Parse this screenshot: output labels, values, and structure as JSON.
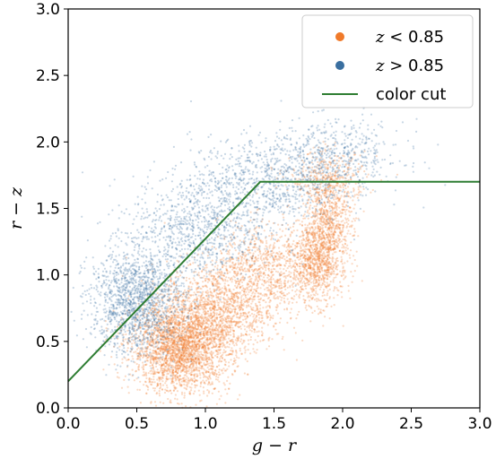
{
  "chart_data": {
    "type": "scatter",
    "xlabel": "g − r",
    "ylabel": "r − z",
    "xlim": [
      0.0,
      3.0
    ],
    "ylim": [
      0.0,
      3.0
    ],
    "x_ticks": [
      "0.0",
      "0.5",
      "1.0",
      "1.5",
      "2.0",
      "2.5",
      "3.0"
    ],
    "y_ticks": [
      "0.0",
      "0.5",
      "1.0",
      "1.5",
      "2.0",
      "2.5",
      "3.0"
    ],
    "grid": false,
    "legend_position": "upper right",
    "series": [
      {
        "name": "z < 0.85",
        "color": "#f07a2a",
        "kind": "points",
        "clusters": [
          {
            "center": [
              0.82,
              0.45
            ],
            "spread": [
              0.18,
              0.17
            ],
            "count": 2600
          },
          {
            "center": [
              1.1,
              0.75
            ],
            "spread": [
              0.2,
              0.18
            ],
            "count": 1300
          },
          {
            "center": [
              1.45,
              1.05
            ],
            "spread": [
              0.18,
              0.17
            ],
            "count": 800
          },
          {
            "center": [
              1.8,
              1.1
            ],
            "spread": [
              0.08,
              0.16
            ],
            "count": 700
          },
          {
            "center": [
              1.9,
              1.35
            ],
            "spread": [
              0.09,
              0.2
            ],
            "count": 800
          },
          {
            "center": [
              1.9,
              1.72
            ],
            "spread": [
              0.14,
              0.1
            ],
            "count": 350
          }
        ]
      },
      {
        "name": "z > 0.85",
        "color": "#3a6fa0",
        "kind": "points",
        "clusters": [
          {
            "center": [
              0.5,
              0.8
            ],
            "spread": [
              0.17,
              0.2
            ],
            "count": 1500
          },
          {
            "center": [
              0.95,
              1.35
            ],
            "spread": [
              0.25,
              0.2
            ],
            "count": 900
          },
          {
            "center": [
              1.45,
              1.7
            ],
            "spread": [
              0.28,
              0.17
            ],
            "count": 800
          },
          {
            "center": [
              1.95,
              1.9
            ],
            "spread": [
              0.25,
              0.13
            ],
            "count": 500
          }
        ]
      },
      {
        "name": "color cut",
        "color": "#2e7d32",
        "kind": "line",
        "x": [
          0.0,
          1.4,
          3.0
        ],
        "y": [
          0.2,
          1.7,
          1.7
        ]
      }
    ],
    "legend": [
      {
        "label_symbol": "z",
        "label_rest": " < 0.85",
        "marker": "dot",
        "color": "#f07a2a"
      },
      {
        "label_symbol": "z",
        "label_rest": " > 0.85",
        "marker": "dot",
        "color": "#3a6fa0"
      },
      {
        "label_symbol": "",
        "label_rest": "color cut",
        "marker": "line",
        "color": "#2e7d32"
      }
    ]
  }
}
